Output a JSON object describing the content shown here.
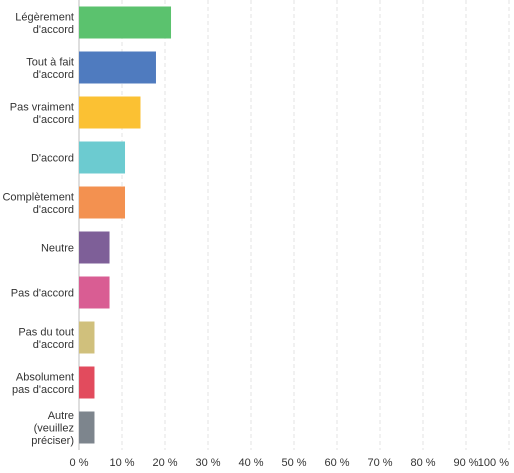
{
  "chart_data": {
    "type": "bar",
    "orientation": "horizontal",
    "categories": [
      [
        "Légèrement",
        "d'accord"
      ],
      [
        "Tout à fait",
        "d'accord"
      ],
      [
        "Pas vraiment",
        "d'accord"
      ],
      [
        "D'accord"
      ],
      [
        "Complètement",
        "d'accord"
      ],
      [
        "Neutre"
      ],
      [
        "Pas d'accord"
      ],
      [
        "Pas du tout",
        "d'accord"
      ],
      [
        "Absolument",
        "pas d'accord"
      ],
      [
        "Autre",
        "(veuillez",
        "préciser)"
      ]
    ],
    "values": [
      21.4,
      17.9,
      14.3,
      10.7,
      10.7,
      7.1,
      7.1,
      3.6,
      3.6,
      3.6
    ],
    "colors": [
      "#5bc26e",
      "#4f7bbf",
      "#fbc133",
      "#6ccbd0",
      "#f39150",
      "#7e5f98",
      "#d95d93",
      "#d0c07c",
      "#e24b5d",
      "#7d858d"
    ],
    "xlim": [
      0,
      100
    ],
    "xticks": [
      "0 %",
      "10 %",
      "20 %",
      "30 %",
      "40 %",
      "50 %",
      "60 %",
      "70 %",
      "80 %",
      "90 %",
      "100 %"
    ],
    "grid": true
  }
}
